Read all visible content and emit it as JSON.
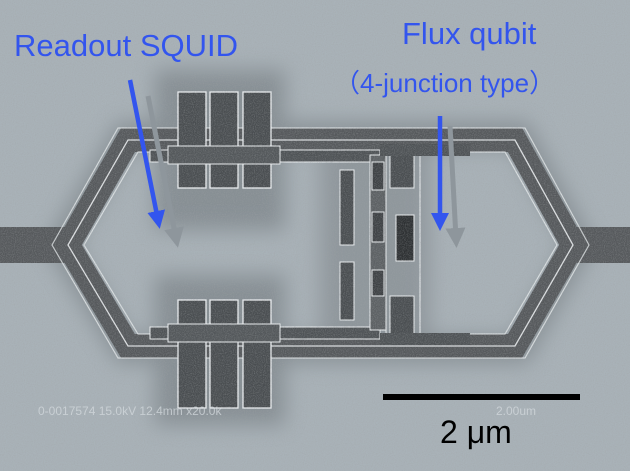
{
  "labels": {
    "readout": "Readout SQUID",
    "flux_title": "Flux qubit",
    "flux_type": "（4-junction type）"
  },
  "scale_bar": {
    "label": "2 μm"
  },
  "sem_meta": {
    "info": "0-0017574 15.0kV 12.4mm x20.0k",
    "scale": "2.00um"
  },
  "colors": {
    "annotation": "#3355ee",
    "background": "#a9b2b8",
    "dark_region": "#56595c",
    "edge_highlight": "#eef1f3",
    "scale_bar": "#000000"
  }
}
